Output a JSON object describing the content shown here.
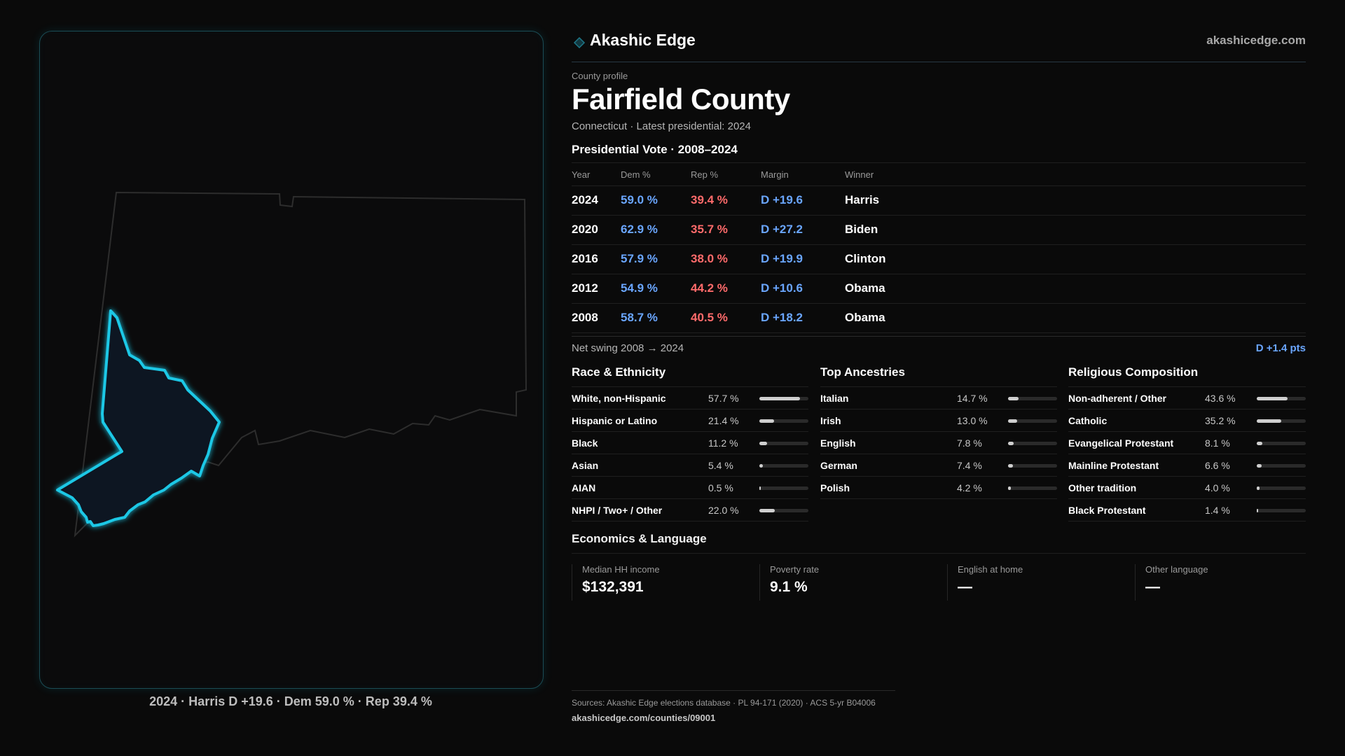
{
  "brand": {
    "name": "Akashic Edge",
    "url": "akashicedge.com"
  },
  "profile": {
    "kicker": "County profile",
    "title": "Fairfield County",
    "subtitle": "Connecticut · Latest presidential: 2024"
  },
  "votes": {
    "heading": "Presidential Vote · 2008–2024",
    "columns": [
      "Year",
      "Dem %",
      "Rep %",
      "Margin",
      "Winner"
    ],
    "rows": [
      {
        "year": "2024",
        "dem": "59.0 %",
        "rep": "39.4 %",
        "margin": "D +19.6",
        "winner": "Harris"
      },
      {
        "year": "2020",
        "dem": "62.9 %",
        "rep": "35.7 %",
        "margin": "D +27.2",
        "winner": "Biden"
      },
      {
        "year": "2016",
        "dem": "57.9 %",
        "rep": "38.0 %",
        "margin": "D +19.9",
        "winner": "Clinton"
      },
      {
        "year": "2012",
        "dem": "54.9 %",
        "rep": "44.2 %",
        "margin": "D +10.6",
        "winner": "Obama"
      },
      {
        "year": "2008",
        "dem": "58.7 %",
        "rep": "40.5 %",
        "margin": "D +18.2",
        "winner": "Obama"
      }
    ]
  },
  "swing": {
    "label": "Net swing 2008 → 2024",
    "value": "D +1.4 pts"
  },
  "race": {
    "heading": "Race & Ethnicity",
    "items": [
      {
        "name": "White, non-Hispanic",
        "pct": "57.7 %",
        "value": 57.7
      },
      {
        "name": "Hispanic or Latino",
        "pct": "21.4 %",
        "value": 21.4
      },
      {
        "name": "Black",
        "pct": "11.2 %",
        "value": 11.2
      },
      {
        "name": "Asian",
        "pct": "5.4 %",
        "value": 5.4
      },
      {
        "name": "AIAN",
        "pct": "0.5 %",
        "value": 0.5
      },
      {
        "name": "NHPI / Two+ / Other",
        "pct": "22.0 %",
        "value": 22.0
      }
    ]
  },
  "ancestry": {
    "heading": "Top Ancestries",
    "items": [
      {
        "name": "Italian",
        "pct": "14.7 %",
        "value": 14.7
      },
      {
        "name": "Irish",
        "pct": "13.0 %",
        "value": 13.0
      },
      {
        "name": "English",
        "pct": "7.8 %",
        "value": 7.8
      },
      {
        "name": "German",
        "pct": "7.4 %",
        "value": 7.4
      },
      {
        "name": "Polish",
        "pct": "4.2 %",
        "value": 4.2
      }
    ]
  },
  "religion": {
    "heading": "Religious Composition",
    "items": [
      {
        "name": "Non-adherent / Other",
        "pct": "43.6 %",
        "value": 43.6
      },
      {
        "name": "Catholic",
        "pct": "35.2 %",
        "value": 35.2
      },
      {
        "name": "Evangelical Protestant",
        "pct": "8.1 %",
        "value": 8.1
      },
      {
        "name": "Mainline Protestant",
        "pct": "6.6 %",
        "value": 6.6
      },
      {
        "name": "Other tradition",
        "pct": "4.0 %",
        "value": 4.0
      },
      {
        "name": "Black Protestant",
        "pct": "1.4 %",
        "value": 1.4
      }
    ]
  },
  "economics": {
    "heading": "Economics & Language",
    "items": [
      {
        "label": "Median HH income",
        "value": "$132,391"
      },
      {
        "label": "Poverty rate",
        "value": "9.1 %"
      },
      {
        "label": "English at home",
        "value": "—"
      },
      {
        "label": "Other language",
        "value": "—"
      }
    ]
  },
  "map": {
    "caption": "2024 · Harris D +19.6 · Dem 59.0 % · Rep 39.4 %",
    "highlight_color": "#1ec8e6"
  },
  "sources": {
    "text": "Sources: Akashic Edge elections database · PL 94-171 (2020) · ACS 5-yr B04006",
    "url": "akashicedge.com/counties/09001"
  },
  "colors": {
    "dem": "#6aa6ff",
    "rep": "#ff6b6b",
    "accent": "#1ec8e6"
  }
}
